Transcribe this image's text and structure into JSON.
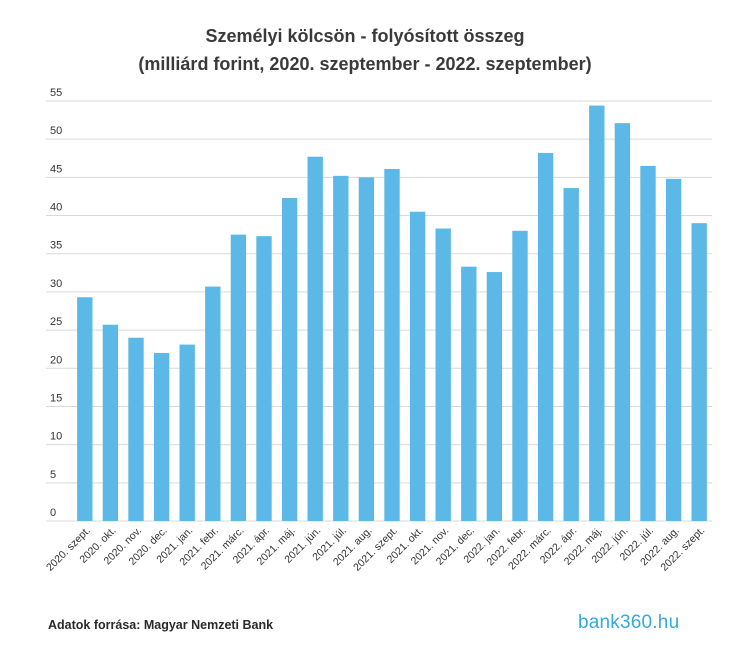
{
  "title_line1": "Személyi kölcsön - folyósított összeg",
  "title_line2": "(milliárd forint, 2020. szeptember - 2022. szeptember)",
  "source": "Adatok forrása: Magyar Nemzeti Bank",
  "logo": {
    "text_before": "bank36",
    "ring": "0",
    "text_after": ".hu"
  },
  "colors": {
    "bar": "#5cb8e6",
    "grid": "#d9d9d9",
    "text": "#333333",
    "logo": "#36a8df"
  },
  "chart_data": {
    "type": "bar",
    "title": "Személyi kölcsön - folyósított összeg (milliárd forint, 2020. szeptember - 2022. szeptember)",
    "xlabel": "",
    "ylabel": "",
    "ylim": [
      0,
      55
    ],
    "yticks": [
      0,
      5,
      10,
      15,
      20,
      25,
      30,
      35,
      40,
      45,
      50,
      55
    ],
    "grid": true,
    "legend": "none",
    "categories": [
      "2020. szept.",
      "2020. okt.",
      "2020. nov.",
      "2020. dec.",
      "2021. jan.",
      "2021. febr.",
      "2021. márc.",
      "2021. ápr.",
      "2021. máj.",
      "2021. jún.",
      "2021. júl.",
      "2021. aug.",
      "2021. szept.",
      "2021. okt.",
      "2021. nov.",
      "2021. dec.",
      "2022. jan.",
      "2022. febr.",
      "2022. márc.",
      "2022. ápr.",
      "2022. máj.",
      "2022. jún.",
      "2022. júl.",
      "2022. aug.",
      "2022. szept."
    ],
    "values": [
      29.3,
      25.7,
      24.0,
      22.0,
      23.1,
      30.7,
      37.5,
      37.3,
      42.3,
      47.7,
      45.2,
      45.0,
      46.1,
      40.5,
      38.3,
      33.3,
      32.6,
      38.0,
      48.2,
      43.6,
      54.4,
      52.1,
      46.5,
      44.8,
      39.0
    ]
  }
}
